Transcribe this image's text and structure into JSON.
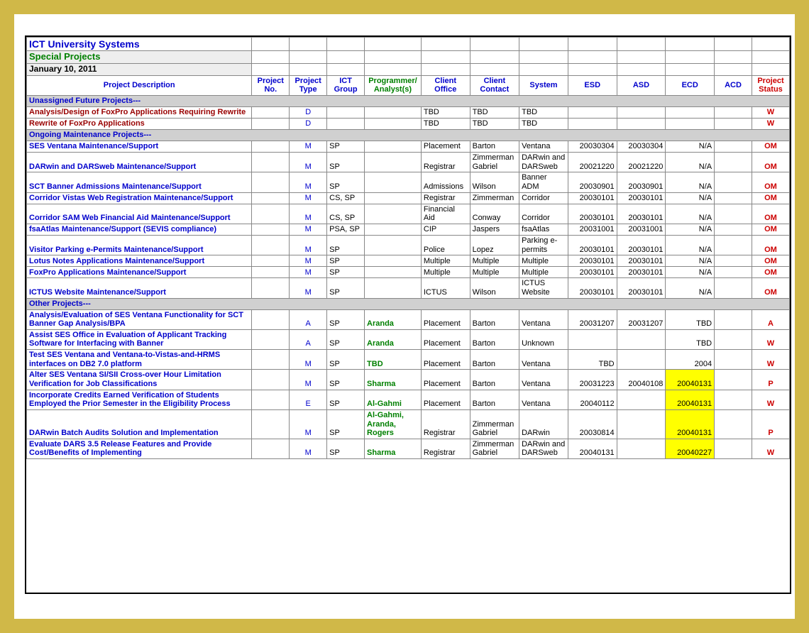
{
  "header": {
    "title1": "ICT University Systems",
    "title2": "Special Projects",
    "date": "January 10, 2011"
  },
  "columns": {
    "desc": "Project Description",
    "no": "Project No.",
    "type": "Project Type",
    "group": "ICT Group",
    "analyst": "Programmer/ Analyst(s)",
    "office": "Client Office",
    "contact": "Client Contact",
    "system": "System",
    "esd": "ESD",
    "asd": "ASD",
    "ecd": "ECD",
    "acd": "ACD",
    "status": "Project Status"
  },
  "sections": {
    "s1": "Unassigned Future Projects---",
    "s2": "Ongoing Maintenance Projects---",
    "s3": "Other Projects---"
  },
  "rows": {
    "r1": {
      "desc": "Analysis/Design of FoxPro Applications Requiring Rewrite",
      "type": "D",
      "office": "TBD",
      "contact": "TBD",
      "system": "TBD",
      "status": "W",
      "desc_cls": "desc-red"
    },
    "r2": {
      "desc": "Rewrite of FoxPro Applications",
      "type": "D",
      "office": "TBD",
      "contact": "TBD",
      "system": "TBD",
      "status": "W",
      "desc_cls": "desc-red"
    },
    "r3": {
      "desc": "SES Ventana Maintenance/Support",
      "type": "M",
      "group": "SP",
      "office": "Placement",
      "contact": "Barton",
      "system": "Ventana",
      "esd": "20030304",
      "asd": "20030304",
      "ecd": "N/A",
      "status": "OM",
      "desc_cls": "desc-blue"
    },
    "r4": {
      "desc": "DARwin and DARSweb Maintenance/Support",
      "type": "M",
      "group": "SP",
      "office": "Registrar",
      "contact": "Zimmerman Gabriel",
      "system": "DARwin and DARSweb",
      "esd": "20021220",
      "asd": "20021220",
      "ecd": "N/A",
      "status": "OM",
      "desc_cls": "desc-blue"
    },
    "r5": {
      "desc": "SCT Banner Admissions Maintenance/Support",
      "type": "M",
      "group": "SP",
      "office": "Admissions",
      "contact": "Wilson",
      "system": "Banner ADM",
      "esd": "20030901",
      "asd": "20030901",
      "ecd": "N/A",
      "status": "OM",
      "desc_cls": "desc-blue"
    },
    "r6": {
      "desc": "Corridor Vistas Web Registration Maintenance/Support",
      "type": "M",
      "group": "CS, SP",
      "office": "Registrar",
      "contact": "Zimmerman",
      "system": "Corridor",
      "esd": "20030101",
      "asd": "20030101",
      "ecd": "N/A",
      "status": "OM",
      "desc_cls": "desc-blue"
    },
    "r7": {
      "desc": "Corridor SAM Web Financial Aid Maintenance/Support",
      "type": "M",
      "group": "CS, SP",
      "office": "Financial Aid",
      "contact": "Conway",
      "system": "Corridor",
      "esd": "20030101",
      "asd": "20030101",
      "ecd": "N/A",
      "status": "OM",
      "desc_cls": "desc-blue"
    },
    "r8": {
      "desc": "fsaAtlas Maintenance/Support (SEVIS compliance)",
      "type": "M",
      "group": "PSA, SP",
      "office": "CIP",
      "contact": "Jaspers",
      "system": "fsaAtlas",
      "esd": "20031001",
      "asd": "20031001",
      "ecd": "N/A",
      "status": "OM",
      "desc_cls": "desc-blue"
    },
    "r9": {
      "desc": "Visitor Parking e-Permits Maintenance/Support",
      "type": "M",
      "group": "SP",
      "office": "Police",
      "contact": "Lopez",
      "system": "Parking e-permits",
      "esd": "20030101",
      "asd": "20030101",
      "ecd": "N/A",
      "status": "OM",
      "desc_cls": "desc-blue"
    },
    "r10": {
      "desc": "Lotus Notes Applications Maintenance/Support",
      "type": "M",
      "group": "SP",
      "office": "Multiple",
      "contact": "Multiple",
      "system": "Multiple",
      "esd": "20030101",
      "asd": "20030101",
      "ecd": "N/A",
      "status": "OM",
      "desc_cls": "desc-blue"
    },
    "r11": {
      "desc": "FoxPro Applications Maintenance/Support",
      "type": "M",
      "group": "SP",
      "office": "Multiple",
      "contact": "Multiple",
      "system": "Multiple",
      "esd": "20030101",
      "asd": "20030101",
      "ecd": "N/A",
      "status": "OM",
      "desc_cls": "desc-blue"
    },
    "r12": {
      "desc": "ICTUS Website Maintenance/Support",
      "type": "M",
      "group": "SP",
      "office": "ICTUS",
      "contact": "Wilson",
      "system": "ICTUS Website",
      "esd": "20030101",
      "asd": "20030101",
      "ecd": "N/A",
      "status": "OM",
      "desc_cls": "desc-blue"
    },
    "r13": {
      "desc": "Analysis/Evaluation of SES Ventana Functionality for SCT Banner Gap Analysis/BPA",
      "type": "A",
      "group": "SP",
      "analyst": "Aranda",
      "office": "Placement",
      "contact": "Barton",
      "system": "Ventana",
      "esd": "20031207",
      "asd": "20031207",
      "ecd": "TBD",
      "status": "A",
      "desc_cls": "desc-blue"
    },
    "r14": {
      "desc": "Assist SES Office in Evaluation of Applicant Tracking Software for Interfacing with Banner",
      "type": "A",
      "group": "SP",
      "analyst": "Aranda",
      "office": "Placement",
      "contact": "Barton",
      "system": "Unknown",
      "ecd": "TBD",
      "status": "W",
      "desc_cls": "desc-blue"
    },
    "r15": {
      "desc": "Test SES Ventana and Ventana-to-Vistas-and-HRMS interfaces on DB2 7.0 platform",
      "type": "M",
      "group": "SP",
      "analyst": "TBD",
      "office": "Placement",
      "contact": "Barton",
      "system": "Ventana",
      "esd": "TBD",
      "ecd": "2004",
      "status": "W",
      "desc_cls": "desc-blue"
    },
    "r16": {
      "desc": "Alter SES Ventana SI/SII Cross-over Hour Limitation Verification for Job Classifications",
      "type": "M",
      "group": "SP",
      "analyst": "Sharma",
      "office": "Placement",
      "contact": "Barton",
      "system": "Ventana",
      "esd": "20031223",
      "asd": "20040108",
      "ecd": "20040131",
      "status": "P",
      "desc_cls": "desc-blue",
      "ecd_hl": true
    },
    "r17": {
      "desc": "Incorporate Credits Earned Verification of Students Employed the Prior Semester in the Eligibility Process",
      "type": "E",
      "group": "SP",
      "analyst": "Al-Gahmi",
      "office": "Placement",
      "contact": "Barton",
      "system": "Ventana",
      "esd": "20040112",
      "ecd": "20040131",
      "status": "W",
      "desc_cls": "desc-blue",
      "ecd_hl": true
    },
    "r18": {
      "desc": "DARwin Batch Audits Solution and Implementation",
      "type": "M",
      "group": "SP",
      "analyst": "Al-Gahmi, Aranda, Rogers",
      "office": "Registrar",
      "contact": "Zimmerman Gabriel",
      "system": "DARwin",
      "esd": "20030814",
      "ecd": "20040131",
      "status": "P",
      "desc_cls": "desc-blue",
      "ecd_hl": true
    },
    "r19": {
      "desc": "Evaluate DARS 3.5 Release Features and Provide Cost/Benefits of Implementing",
      "type": "M",
      "group": "SP",
      "analyst": "Sharma",
      "office": "Registrar",
      "contact": "Zimmerman Gabriel",
      "system": "DARwin and DARSweb",
      "esd": "20040131",
      "ecd": "20040227",
      "status": "W",
      "desc_cls": "desc-blue",
      "ecd_hl": true
    }
  }
}
